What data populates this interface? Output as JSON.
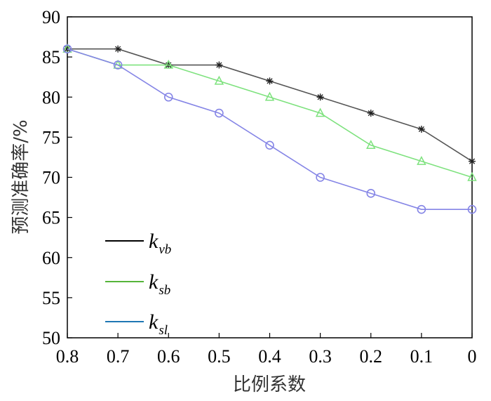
{
  "chart_data": {
    "type": "line",
    "xlabel": "比例系数",
    "ylabel": "预测准确率/%",
    "x": [
      "0.8",
      "0.7",
      "0.6",
      "0.5",
      "0.4",
      "0.3",
      "0.2",
      "0.1",
      "0"
    ],
    "ylim": [
      50,
      90
    ],
    "yticks": [
      "50",
      "55",
      "60",
      "65",
      "70",
      "75",
      "80",
      "85",
      "90"
    ],
    "grid": false,
    "legend_position": "bottom-left",
    "series": [
      {
        "name_main": "k",
        "name_sub": "vb",
        "color": "#555555",
        "marker": "asterisk",
        "values": [
          86,
          86,
          84,
          84,
          82,
          80,
          78,
          76,
          72
        ]
      },
      {
        "name_main": "k",
        "name_sub": "sb",
        "color": "#7ee27e",
        "marker": "triangle",
        "values": [
          86,
          84,
          84,
          82,
          80,
          78,
          74,
          72,
          70
        ]
      },
      {
        "name_main": "k",
        "name_sub": "sl",
        "color": "#8585e6",
        "marker": "circle",
        "values": [
          86,
          84,
          80,
          78,
          74,
          70,
          68,
          66,
          66
        ]
      }
    ],
    "legend_line_colors": [
      "#000000",
      "#55b53a",
      "#1f77b4"
    ]
  }
}
